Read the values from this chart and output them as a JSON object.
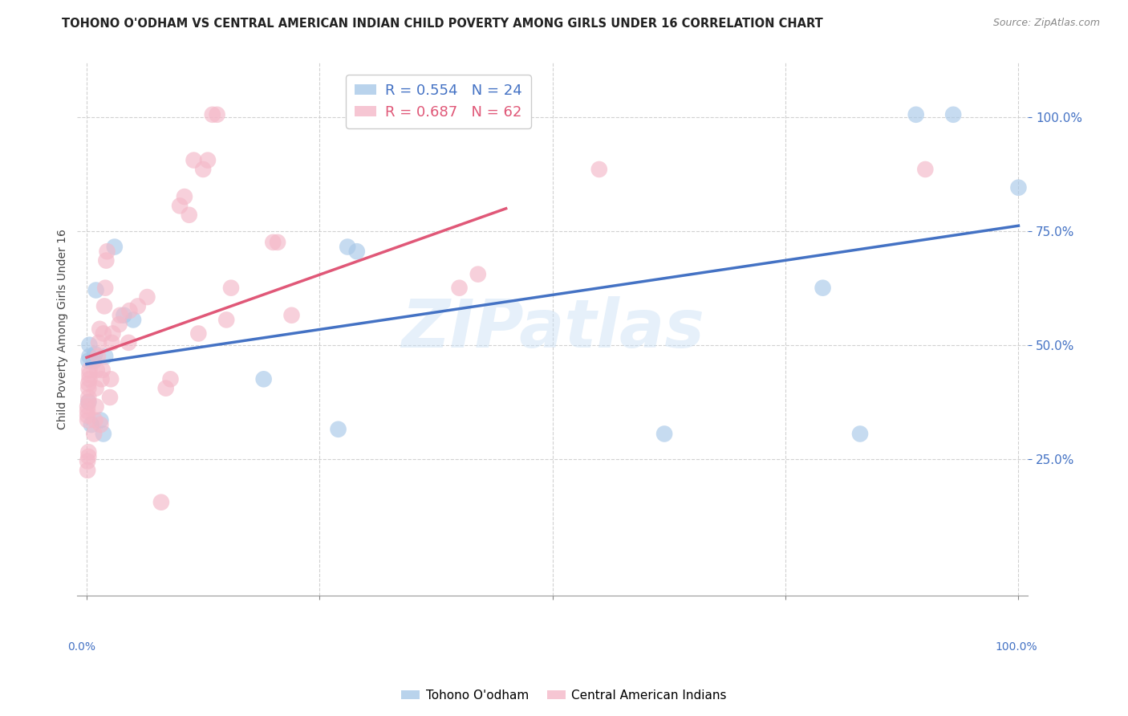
{
  "title": "TOHONO O'ODHAM VS CENTRAL AMERICAN INDIAN CHILD POVERTY AMONG GIRLS UNDER 16 CORRELATION CHART",
  "source": "Source: ZipAtlas.com",
  "ylabel": "Child Poverty Among Girls Under 16",
  "blue_label": "Tohono O'odham",
  "pink_label": "Central American Indians",
  "blue_R": 0.554,
  "blue_N": 24,
  "pink_R": 0.687,
  "pink_N": 62,
  "blue_color": "#a8c8e8",
  "pink_color": "#f4b8c8",
  "blue_line_color": "#4472c4",
  "pink_line_color": "#e05878",
  "background_color": "#ffffff",
  "watermark": "ZIPatlas",
  "blue_points": [
    [
      0.002,
      0.375
    ],
    [
      0.002,
      0.465
    ],
    [
      0.003,
      0.475
    ],
    [
      0.003,
      0.5
    ],
    [
      0.005,
      0.325
    ],
    [
      0.008,
      0.465
    ],
    [
      0.009,
      0.48
    ],
    [
      0.01,
      0.62
    ],
    [
      0.015,
      0.335
    ],
    [
      0.018,
      0.305
    ],
    [
      0.02,
      0.475
    ],
    [
      0.03,
      0.715
    ],
    [
      0.04,
      0.565
    ],
    [
      0.05,
      0.555
    ],
    [
      0.19,
      0.425
    ],
    [
      0.27,
      0.315
    ],
    [
      0.28,
      0.715
    ],
    [
      0.29,
      0.705
    ],
    [
      0.62,
      0.305
    ],
    [
      0.79,
      0.625
    ],
    [
      0.83,
      0.305
    ],
    [
      0.89,
      1.005
    ],
    [
      0.93,
      1.005
    ],
    [
      1.0,
      0.845
    ]
  ],
  "pink_points": [
    [
      0.001,
      0.335
    ],
    [
      0.001,
      0.345
    ],
    [
      0.001,
      0.355
    ],
    [
      0.001,
      0.365
    ],
    [
      0.002,
      0.375
    ],
    [
      0.002,
      0.385
    ],
    [
      0.002,
      0.405
    ],
    [
      0.002,
      0.415
    ],
    [
      0.003,
      0.425
    ],
    [
      0.003,
      0.435
    ],
    [
      0.003,
      0.445
    ],
    [
      0.001,
      0.225
    ],
    [
      0.001,
      0.245
    ],
    [
      0.002,
      0.255
    ],
    [
      0.002,
      0.265
    ],
    [
      0.008,
      0.305
    ],
    [
      0.009,
      0.335
    ],
    [
      0.01,
      0.365
    ],
    [
      0.01,
      0.405
    ],
    [
      0.011,
      0.445
    ],
    [
      0.012,
      0.475
    ],
    [
      0.013,
      0.505
    ],
    [
      0.014,
      0.535
    ],
    [
      0.015,
      0.325
    ],
    [
      0.016,
      0.425
    ],
    [
      0.017,
      0.445
    ],
    [
      0.018,
      0.525
    ],
    [
      0.019,
      0.585
    ],
    [
      0.02,
      0.625
    ],
    [
      0.021,
      0.685
    ],
    [
      0.022,
      0.705
    ],
    [
      0.025,
      0.385
    ],
    [
      0.026,
      0.425
    ],
    [
      0.027,
      0.505
    ],
    [
      0.028,
      0.525
    ],
    [
      0.035,
      0.545
    ],
    [
      0.036,
      0.565
    ],
    [
      0.045,
      0.505
    ],
    [
      0.046,
      0.575
    ],
    [
      0.055,
      0.585
    ],
    [
      0.065,
      0.605
    ],
    [
      0.08,
      0.155
    ],
    [
      0.085,
      0.405
    ],
    [
      0.09,
      0.425
    ],
    [
      0.1,
      0.805
    ],
    [
      0.105,
      0.825
    ],
    [
      0.11,
      0.785
    ],
    [
      0.115,
      0.905
    ],
    [
      0.12,
      0.525
    ],
    [
      0.125,
      0.885
    ],
    [
      0.13,
      0.905
    ],
    [
      0.135,
      1.005
    ],
    [
      0.14,
      1.005
    ],
    [
      0.15,
      0.555
    ],
    [
      0.155,
      0.625
    ],
    [
      0.2,
      0.725
    ],
    [
      0.205,
      0.725
    ],
    [
      0.22,
      0.565
    ],
    [
      0.4,
      0.625
    ],
    [
      0.42,
      0.655
    ],
    [
      0.55,
      0.885
    ],
    [
      0.9,
      0.885
    ]
  ],
  "xlim": [
    -0.01,
    1.01
  ],
  "ylim": [
    -0.05,
    1.12
  ],
  "yticks": [
    0.25,
    0.5,
    0.75,
    1.0
  ],
  "xticks": [
    0.0,
    0.25,
    0.5,
    0.75,
    1.0
  ],
  "figsize": [
    14.06,
    8.92
  ],
  "dpi": 100
}
